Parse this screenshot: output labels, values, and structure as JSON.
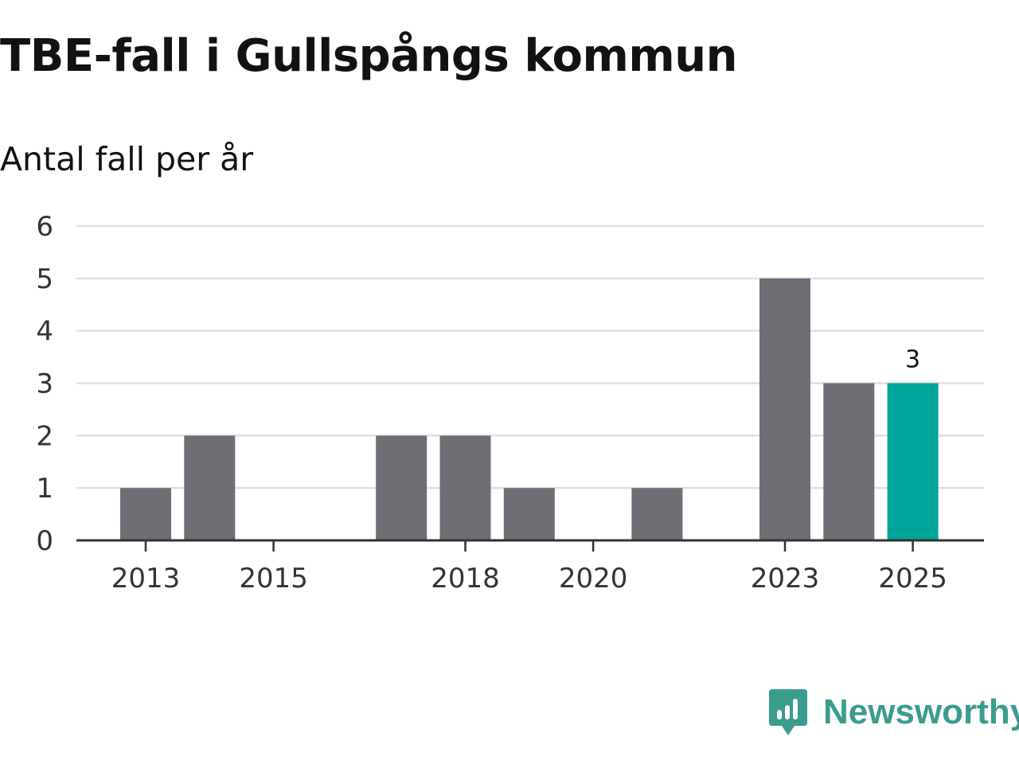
{
  "chart_data": {
    "type": "bar",
    "title": "TBE-fall i Gullspångs kommun",
    "subtitle": "Antal fall per år",
    "xlabel": "",
    "ylabel": "Antal fall per år",
    "categories": [
      "2013",
      "2014",
      "2015",
      "2016",
      "2017",
      "2018",
      "2019",
      "2020",
      "2021",
      "2022",
      "2023",
      "2024",
      "2025"
    ],
    "values": [
      1,
      2,
      0,
      0,
      2,
      2,
      1,
      0,
      1,
      0,
      5,
      3,
      3
    ],
    "ylim": [
      0,
      6
    ],
    "yticks": [
      "0",
      "1",
      "2",
      "3",
      "4",
      "5",
      "6"
    ],
    "xtick_labels": [
      "2013",
      "2015",
      "2018",
      "2020",
      "2023",
      "2025"
    ],
    "highlight": {
      "category": "2025",
      "label": "3"
    },
    "grid": true,
    "colors": {
      "bar": "#6f6e75",
      "highlight": "#00a599",
      "grid": "#e0e0e0",
      "axis": "#333333"
    }
  },
  "brand": {
    "name": "Newsworthy",
    "logo_icon": "newsworthy-logo-icon",
    "color": "#3a9c8f"
  }
}
